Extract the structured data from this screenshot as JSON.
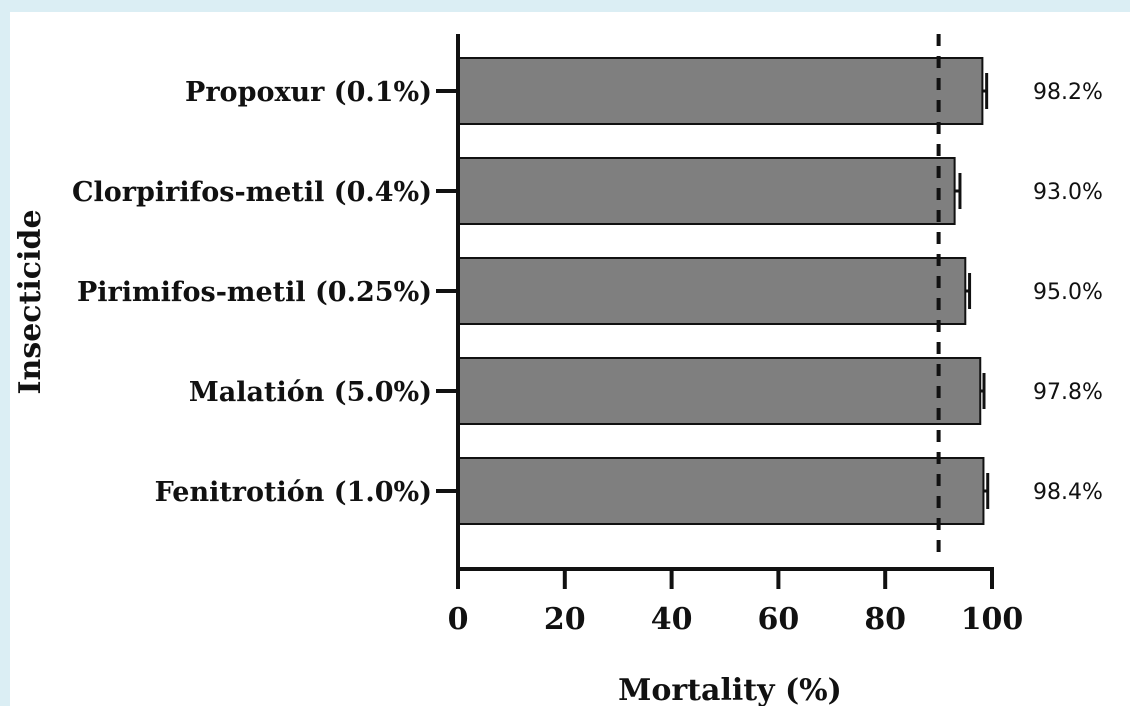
{
  "chart_data": {
    "type": "bar",
    "orientation": "horizontal",
    "categories": [
      "Propoxur (0.1%)",
      "Clorpirifos-metil (0.4%)",
      "Pirimifos-metil (0.25%)",
      "Malatión (5.0%)",
      "Fenitrotión (1.0%)"
    ],
    "values": [
      98.2,
      93.0,
      95.0,
      97.8,
      98.4
    ],
    "error": [
      0.8,
      1.0,
      0.8,
      0.7,
      0.8
    ],
    "value_labels": [
      "98.2%",
      "93.0%",
      "95.0%",
      "97.8%",
      "98.4%"
    ],
    "reference_line": {
      "x": 90,
      "style": "dashed"
    },
    "xlabel": "Mortality (%)",
    "ylabel": "Insecticide",
    "xlim": [
      0,
      100
    ],
    "xticks": [
      0,
      20,
      40,
      60,
      80,
      100
    ],
    "xtick_labels": [
      "0",
      "20",
      "40",
      "60",
      "80",
      "100"
    ],
    "grid": false,
    "colors": {
      "bar_fill": "#7f7f7f",
      "bar_stroke": "#111111",
      "page_background": "#dbeef4",
      "panel_background": "#ffffff"
    }
  }
}
